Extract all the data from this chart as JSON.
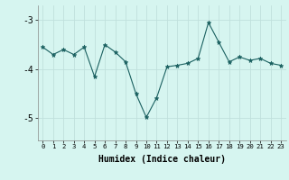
{
  "title": "",
  "xlabel": "Humidex (Indice chaleur)",
  "background_color": "#d6f5f0",
  "line_color": "#1a6060",
  "marker_color": "#1a6060",
  "grid_color": "#c0e0dc",
  "yticks": [
    -5,
    -4,
    -3
  ],
  "ylim": [
    -5.45,
    -2.7
  ],
  "xlim": [
    -0.5,
    23.5
  ],
  "values": [
    -3.55,
    -3.7,
    -3.6,
    -3.7,
    -3.55,
    -4.15,
    -3.5,
    -3.65,
    -3.85,
    -4.5,
    -4.98,
    -4.58,
    -3.95,
    -3.92,
    -3.88,
    -3.78,
    -3.05,
    -3.45,
    -3.85,
    -3.75,
    -3.82,
    -3.78,
    -3.88,
    -3.92
  ]
}
